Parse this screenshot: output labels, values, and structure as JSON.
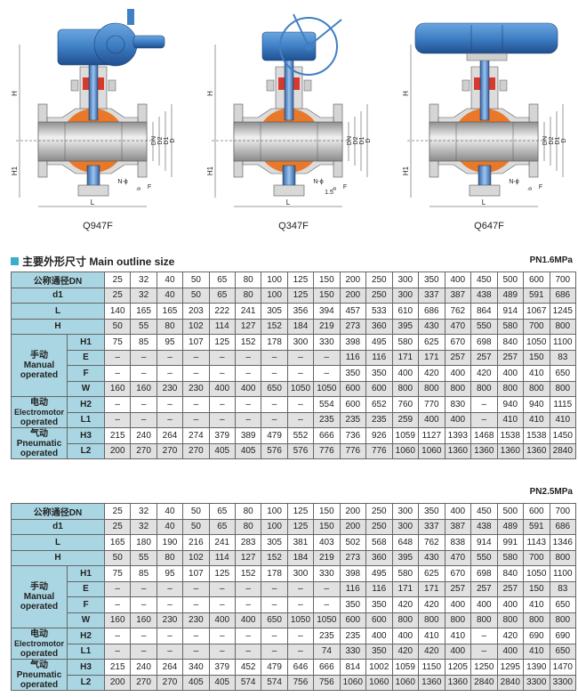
{
  "figures": [
    {
      "caption": "Q947F",
      "labels": {
        "H": "H",
        "H1": "H1",
        "L": "L",
        "DN": "DN",
        "D2": "D2",
        "D1": "D1",
        "D": "D",
        "N": "N-ϕ",
        "F": "F",
        "b": "b"
      }
    },
    {
      "caption": "Q347F",
      "labels": {
        "H": "H",
        "H1": "H1",
        "L": "L",
        "DN": "DN",
        "D2": "D2",
        "D1": "D1",
        "D": "D",
        "N": "N-ϕ",
        "F": "F",
        "b": "b",
        "e": "1.5"
      }
    },
    {
      "caption": "Q647F",
      "labels": {
        "H": "H",
        "H1": "H1",
        "L": "L",
        "DN": "DN",
        "D2": "D2",
        "D1": "D1",
        "D": "D",
        "N": "N-ϕ",
        "F": "F",
        "b": "b"
      }
    }
  ],
  "section_title": "主要外形尺寸 Main outline size",
  "colors": {
    "header_bg": "#a9d6e2",
    "alt_row": "#e1e1e1",
    "accent": "#3aaecb",
    "valve_blue": "#3f7fc4",
    "ball_orange": "#e9782a"
  },
  "tables": [
    {
      "pressure": "PN1.6MPa",
      "rows": [
        {
          "label": "公称通径DN",
          "values": [
            "25",
            "32",
            "40",
            "50",
            "65",
            "80",
            "100",
            "125",
            "150",
            "200",
            "250",
            "300",
            "350",
            "400",
            "450",
            "500",
            "600",
            "700"
          ]
        },
        {
          "label": "d1",
          "values": [
            "25",
            "32",
            "40",
            "50",
            "65",
            "80",
            "100",
            "125",
            "150",
            "200",
            "250",
            "300",
            "337",
            "387",
            "438",
            "489",
            "591",
            "686"
          ]
        },
        {
          "label": "L",
          "values": [
            "140",
            "165",
            "165",
            "203",
            "222",
            "241",
            "305",
            "356",
            "394",
            "457",
            "533",
            "610",
            "686",
            "762",
            "864",
            "914",
            "1067",
            "1245"
          ]
        },
        {
          "label": "H",
          "values": [
            "50",
            "55",
            "80",
            "102",
            "114",
            "127",
            "152",
            "184",
            "219",
            "273",
            "360",
            "395",
            "430",
            "470",
            "550",
            "580",
            "700",
            "800"
          ]
        }
      ],
      "groups": [
        {
          "zh": "手动",
          "en1": "Manual",
          "en2": "operated",
          "rows": [
            {
              "label": "H1",
              "values": [
                "75",
                "85",
                "95",
                "107",
                "125",
                "152",
                "178",
                "300",
                "330",
                "398",
                "495",
                "580",
                "625",
                "670",
                "698",
                "840",
                "1050",
                "1100"
              ]
            },
            {
              "label": "E",
              "values": [
                "–",
                "–",
                "–",
                "–",
                "–",
                "–",
                "–",
                "–",
                "–",
                "116",
                "116",
                "171",
                "171",
                "257",
                "257",
                "257",
                "150",
                "83"
              ]
            },
            {
              "label": "F",
              "values": [
                "–",
                "–",
                "–",
                "–",
                "–",
                "–",
                "–",
                "–",
                "–",
                "350",
                "350",
                "400",
                "420",
                "400",
                "420",
                "400",
                "410",
                "650"
              ]
            },
            {
              "label": "W",
              "values": [
                "160",
                "160",
                "230",
                "230",
                "400",
                "400",
                "650",
                "1050",
                "1050",
                "600",
                "600",
                "800",
                "800",
                "800",
                "800",
                "800",
                "800",
                "800"
              ]
            }
          ]
        },
        {
          "zh": "电动",
          "en1": "Electromotor",
          "en2": "operated",
          "rows": [
            {
              "label": "H2",
              "values": [
                "–",
                "–",
                "–",
                "–",
                "–",
                "–",
                "–",
                "–",
                "554",
                "600",
                "652",
                "760",
                "770",
                "830",
                "–",
                "940",
                "940",
                "1115"
              ]
            },
            {
              "label": "L1",
              "values": [
                "–",
                "–",
                "–",
                "–",
                "–",
                "–",
                "–",
                "–",
                "235",
                "235",
                "235",
                "259",
                "400",
                "400",
                "–",
                "410",
                "410",
                "410"
              ]
            }
          ]
        },
        {
          "zh": "气动",
          "en1": "Pneumatic",
          "en2": "operated",
          "rows": [
            {
              "label": "H3",
              "values": [
                "215",
                "240",
                "264",
                "274",
                "379",
                "389",
                "479",
                "552",
                "666",
                "736",
                "926",
                "1059",
                "1127",
                "1393",
                "1468",
                "1538",
                "1538",
                "1450"
              ]
            },
            {
              "label": "L2",
              "values": [
                "200",
                "270",
                "270",
                "270",
                "405",
                "405",
                "576",
                "576",
                "776",
                "776",
                "776",
                "1060",
                "1060",
                "1360",
                "1360",
                "1360",
                "1360",
                "2840"
              ]
            }
          ]
        }
      ]
    },
    {
      "pressure": "PN2.5MPa",
      "rows": [
        {
          "label": "公称通径DN",
          "values": [
            "25",
            "32",
            "40",
            "50",
            "65",
            "80",
            "100",
            "125",
            "150",
            "200",
            "250",
            "300",
            "350",
            "400",
            "450",
            "500",
            "600",
            "700"
          ]
        },
        {
          "label": "d1",
          "values": [
            "25",
            "32",
            "40",
            "50",
            "65",
            "80",
            "100",
            "125",
            "150",
            "200",
            "250",
            "300",
            "337",
            "387",
            "438",
            "489",
            "591",
            "686"
          ]
        },
        {
          "label": "L",
          "values": [
            "165",
            "180",
            "190",
            "216",
            "241",
            "283",
            "305",
            "381",
            "403",
            "502",
            "568",
            "648",
            "762",
            "838",
            "914",
            "991",
            "1143",
            "1346"
          ]
        },
        {
          "label": "H",
          "values": [
            "50",
            "55",
            "80",
            "102",
            "114",
            "127",
            "152",
            "184",
            "219",
            "273",
            "360",
            "395",
            "430",
            "470",
            "550",
            "580",
            "700",
            "800"
          ]
        }
      ],
      "groups": [
        {
          "zh": "手动",
          "en1": "Manual",
          "en2": "operated",
          "rows": [
            {
              "label": "H1",
              "values": [
                "75",
                "85",
                "95",
                "107",
                "125",
                "152",
                "178",
                "300",
                "330",
                "398",
                "495",
                "580",
                "625",
                "670",
                "698",
                "840",
                "1050",
                "1100"
              ]
            },
            {
              "label": "E",
              "values": [
                "–",
                "–",
                "–",
                "–",
                "–",
                "–",
                "–",
                "–",
                "–",
                "116",
                "116",
                "171",
                "171",
                "257",
                "257",
                "257",
                "150",
                "83"
              ]
            },
            {
              "label": "F",
              "values": [
                "–",
                "–",
                "–",
                "–",
                "–",
                "–",
                "–",
                "–",
                "–",
                "350",
                "350",
                "420",
                "420",
                "400",
                "400",
                "400",
                "410",
                "650"
              ]
            },
            {
              "label": "W",
              "values": [
                "160",
                "160",
                "230",
                "230",
                "400",
                "400",
                "650",
                "1050",
                "1050",
                "600",
                "600",
                "800",
                "800",
                "800",
                "800",
                "800",
                "800",
                "800"
              ]
            }
          ]
        },
        {
          "zh": "电动",
          "en1": "Electromotor",
          "en2": "operated",
          "rows": [
            {
              "label": "H2",
              "values": [
                "–",
                "–",
                "–",
                "–",
                "–",
                "–",
                "–",
                "–",
                "235",
                "235",
                "400",
                "400",
                "410",
                "410",
                "–",
                "420",
                "690",
                "690"
              ]
            },
            {
              "label": "L1",
              "values": [
                "–",
                "–",
                "–",
                "–",
                "–",
                "–",
                "–",
                "–",
                "74",
                "330",
                "350",
                "420",
                "420",
                "400",
                "–",
                "400",
                "410",
                "650"
              ]
            }
          ]
        },
        {
          "zh": "气动",
          "en1": "Pneumatic",
          "en2": "operated",
          "rows": [
            {
              "label": "H3",
              "values": [
                "215",
                "240",
                "264",
                "340",
                "379",
                "452",
                "479",
                "646",
                "666",
                "814",
                "1002",
                "1059",
                "1150",
                "1205",
                "1250",
                "1295",
                "1390",
                "1470"
              ]
            },
            {
              "label": "L2",
              "values": [
                "200",
                "270",
                "270",
                "405",
                "405",
                "574",
                "574",
                "756",
                "756",
                "1060",
                "1060",
                "1060",
                "1360",
                "1360",
                "2840",
                "2840",
                "3300",
                "3300"
              ]
            }
          ]
        }
      ]
    }
  ]
}
